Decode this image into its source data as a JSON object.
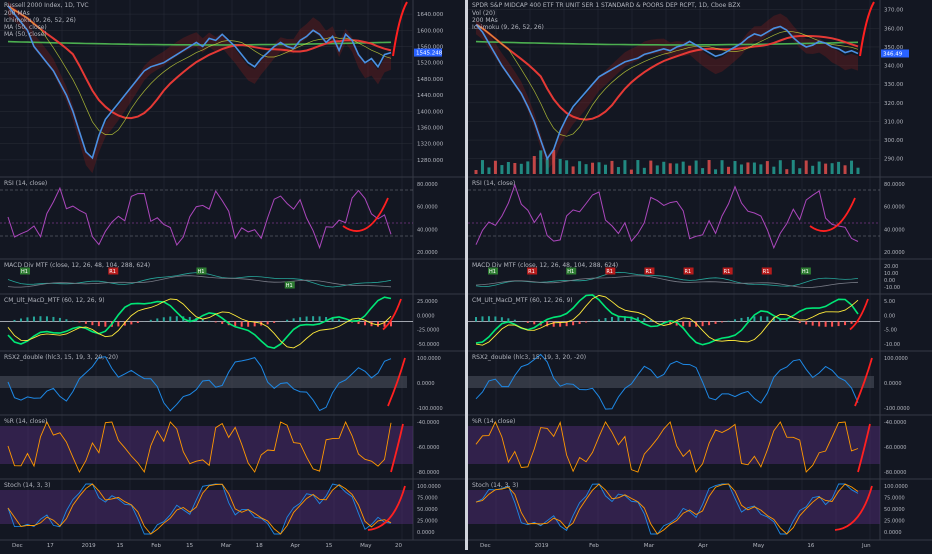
{
  "colors": {
    "bg": "#131722",
    "grid": "#2a2e39",
    "text": "#b2b5be",
    "price": "#4a90e2",
    "ma50": "#ff5252",
    "ma200": "#4caf50",
    "rsi": "#ab47bc",
    "macd": "#1e88e5",
    "signal": "#ff9800",
    "red": "#ff2020",
    "band": "#4a2a6e",
    "cloud_green": "#1b5e20",
    "cloud_red": "#7f1d1d"
  },
  "panels": [
    {
      "id": "left",
      "title": "Russell 2000 Index, 1D, TVC",
      "legend": [
        "200 MAs",
        "Ichimoku (9, 26, 52, 26)",
        "MA (50, close)",
        "MA (50, close)"
      ],
      "price_badge": "1545.248",
      "price_ticks": [
        "1640.000",
        "1600.000",
        "1560.000",
        "1520.000",
        "1480.000",
        "1440.000",
        "1400.000",
        "1360.000",
        "1320.000",
        "1280.000"
      ],
      "x_labels": [
        "Dec",
        "17",
        "2019",
        "15",
        "Feb",
        "15",
        "Mar",
        "18",
        "Apr",
        "15",
        "May",
        "20"
      ],
      "price_series": [
        1660,
        1640,
        1620,
        1600,
        1560,
        1540,
        1520,
        1500,
        1470,
        1440,
        1400,
        1350,
        1300,
        1285,
        1340,
        1380,
        1400,
        1420,
        1440,
        1460,
        1480,
        1500,
        1510,
        1515,
        1520,
        1530,
        1540,
        1550,
        1560,
        1570,
        1560,
        1580,
        1575,
        1590,
        1575,
        1560,
        1540,
        1520,
        1510,
        1530,
        1545,
        1560,
        1570,
        1560,
        1555,
        1575,
        1585,
        1600,
        1590,
        1570,
        1585,
        1550,
        1590,
        1575,
        1540,
        1520,
        1530,
        1510,
        1540,
        1545
      ],
      "indicators": [
        {
          "name": "RSI (14, close)",
          "ticks": [
            "80.0000",
            "60.0000",
            "40.0000",
            "20.0000"
          ]
        },
        {
          "name": "MACD Div MTF (close, 12, 26, 48, 104, 288, 624)",
          "ticks": [],
          "tags": [
            "H1",
            "R1",
            "H1",
            "H1"
          ]
        },
        {
          "name": "CM_Ult_MacD_MTF (60, 12, 26, 9)",
          "ticks": [
            "25.0000",
            "0.0000",
            "-25.0000",
            "-50.0000"
          ]
        },
        {
          "name": "RSX2_double (hlc3, 15, 19, 3, 20, -20)",
          "ticks": [
            "100.0000",
            "0.0000",
            "-100.0000"
          ]
        },
        {
          "name": "%R (14, close)",
          "ticks": [
            "-40.0000",
            "-60.0000",
            "-80.0000"
          ]
        },
        {
          "name": "Stoch (14, 3, 3)",
          "ticks": [
            "100.0000",
            "75.0000",
            "50.0000",
            "25.0000",
            "0.0000"
          ]
        }
      ]
    },
    {
      "id": "right",
      "title": "SPDR S&P MIDCAP 400 ETF TR UNIT SER 1 STANDARD & POORS DEP RCPT, 1D, Cboe BZX",
      "legend": [
        "Vol (20)",
        "200 MAs",
        "Ichimoku (9, 26, 52, 26)"
      ],
      "price_badge": "346.49",
      "price_ticks": [
        "370.00",
        "360.00",
        "350.00",
        "340.00",
        "330.00",
        "320.00",
        "310.00",
        "300.00",
        "290.00"
      ],
      "x_labels": [
        "Dec",
        "2019",
        "Feb",
        "Mar",
        "Apr",
        "May",
        "16",
        "Jun"
      ],
      "price_series": [
        362,
        358,
        352,
        346,
        340,
        335,
        330,
        325,
        318,
        310,
        300,
        290,
        295,
        305,
        312,
        318,
        322,
        326,
        330,
        334,
        336,
        338,
        340,
        342,
        343,
        344,
        346,
        347,
        348,
        349,
        348,
        350,
        351,
        353,
        351,
        349,
        347,
        345,
        346,
        348,
        350,
        352,
        355,
        357,
        356,
        358,
        360,
        361,
        359,
        355,
        352,
        350,
        351,
        353,
        352,
        350,
        349,
        347,
        348,
        346.5
      ],
      "indicators": [
        {
          "name": "RSI (14, close)",
          "ticks": [
            "80.0000",
            "60.0000",
            "40.0000",
            "20.0000"
          ]
        },
        {
          "name": "MACD Div MTF (close, 12, 26, 48, 104, 288, 624)",
          "ticks": [
            "20.00",
            "10.00",
            "0.00",
            "-10.00"
          ],
          "tags": [
            "H1",
            "R1",
            "H1",
            "R1",
            "R1",
            "R1",
            "R1",
            "R1",
            "H1"
          ]
        },
        {
          "name": "CM_Ult_MacD_MTF (60, 12, 26, 9)",
          "ticks": [
            "5.00",
            "0.00",
            "-5.00",
            "-10.00"
          ]
        },
        {
          "name": "RSX2_double (hlc3, 15, 19, 3, 20, -20)",
          "ticks": [
            "100.0000",
            "0.0000",
            "-100.0000"
          ]
        },
        {
          "name": "%R (14, close)",
          "ticks": [
            "-40.0000",
            "-60.0000",
            "-80.0000"
          ]
        },
        {
          "name": "Stoch (14, 3, 3)",
          "ticks": [
            "100.0000",
            "75.0000",
            "50.0000",
            "25.0000",
            "0.0000"
          ]
        }
      ]
    }
  ],
  "chart_data": [
    {
      "type": "line",
      "title": "Russell 2000 Index, 1D, TVC",
      "series": [
        {
          "name": "Russell 2000 Index",
          "values": [
            1660,
            1640,
            1620,
            1600,
            1560,
            1540,
            1520,
            1500,
            1470,
            1440,
            1400,
            1350,
            1300,
            1285,
            1340,
            1380,
            1400,
            1420,
            1440,
            1460,
            1480,
            1500,
            1510,
            1515,
            1520,
            1530,
            1540,
            1550,
            1560,
            1570,
            1560,
            1580,
            1575,
            1590,
            1575,
            1560,
            1540,
            1520,
            1510,
            1530,
            1545,
            1560,
            1570,
            1560,
            1555,
            1575,
            1585,
            1600,
            1590,
            1570,
            1585,
            1550,
            1590,
            1575,
            1540,
            1520,
            1530,
            1510,
            1540,
            1545
          ]
        }
      ],
      "ylim": [
        1260,
        1660
      ]
    },
    {
      "type": "line",
      "title": "SPDR S&P MIDCAP 400 ETF TR UNIT SER 1 STANDARD & POORS DEP RCPT, 1D, Cboe BZX",
      "series": [
        {
          "name": "SPDR S&P MIDCAP 400 ETF",
          "values": [
            362,
            358,
            352,
            346,
            340,
            335,
            330,
            325,
            318,
            310,
            300,
            290,
            295,
            305,
            312,
            318,
            322,
            326,
            330,
            334,
            336,
            338,
            340,
            342,
            343,
            344,
            346,
            347,
            348,
            349,
            348,
            350,
            351,
            353,
            351,
            349,
            347,
            345,
            346,
            348,
            350,
            352,
            355,
            357,
            356,
            358,
            360,
            361,
            359,
            355,
            352,
            350,
            351,
            353,
            352,
            350,
            349,
            347,
            348,
            346.5
          ]
        }
      ],
      "ylim": [
        285,
        372
      ]
    }
  ]
}
